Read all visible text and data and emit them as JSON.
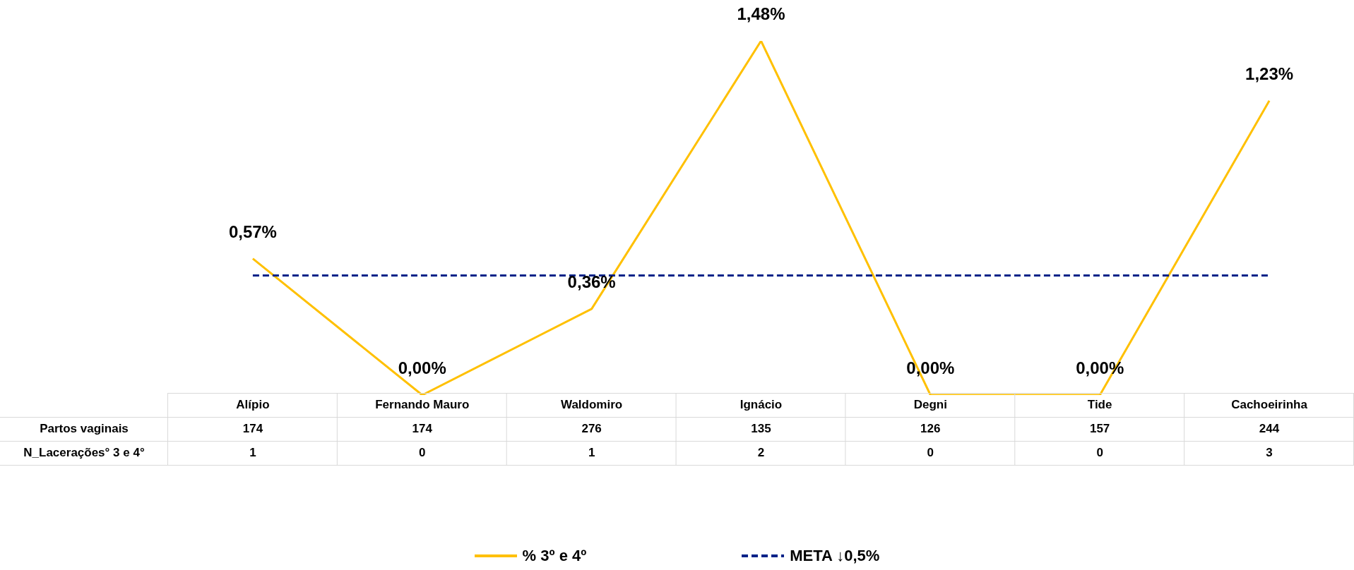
{
  "chart_data": {
    "type": "line",
    "categories": [
      "Alípio",
      "Fernando Mauro",
      "Waldomiro",
      "Ignácio",
      "Degni",
      "Tide",
      "Cachoeirinha"
    ],
    "series": [
      {
        "name": "% 3º e 4º",
        "color": "#ffc000",
        "values": [
          0.57,
          0,
          0.36,
          1.48,
          0,
          0,
          1.23
        ],
        "value_labels": [
          "0,57%",
          "0,00%",
          "0,36%",
          "1,48%",
          "0,00%",
          "0,00%",
          "1,23%"
        ],
        "line_style": "solid"
      },
      {
        "name": "META ↓0,5%",
        "color": "#002288",
        "values": [
          0.5,
          0.5,
          0.5,
          0.5,
          0.5,
          0.5,
          0.5
        ],
        "line_style": "dashed"
      }
    ],
    "tick_labels": "x",
    "grid": false,
    "marker": "none",
    "legend": "bottom",
    "annotations": [
      "Partos vaginais",
      "174",
      "174",
      "276",
      "135",
      "126",
      "157",
      "244",
      "N_Lacerações° 3 e 4°",
      "1",
      "0",
      "1",
      "2",
      "0",
      "0",
      "3"
    ]
  }
}
